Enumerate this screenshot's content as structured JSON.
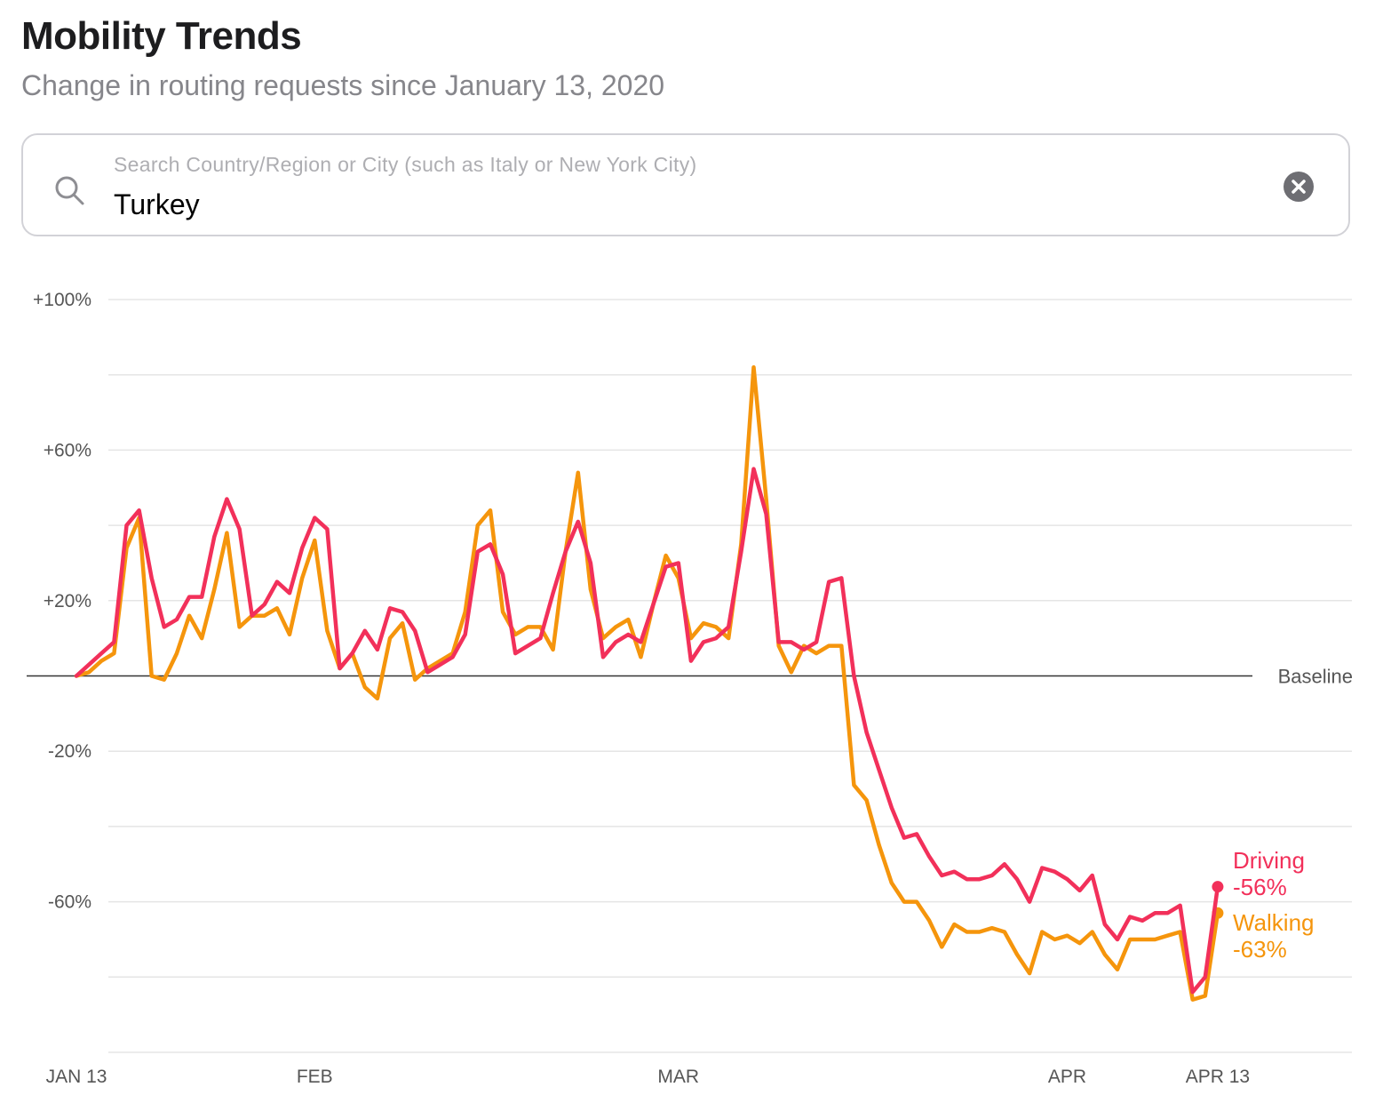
{
  "header": {
    "title": "Mobility Trends",
    "subtitle": "Change in routing requests since January 13, 2020"
  },
  "search": {
    "placeholder": "Search Country/Region or City (such as Italy or New York City)",
    "value": "Turkey",
    "icon": "search-icon",
    "clear_icon": "clear-icon"
  },
  "colors": {
    "driving": "#f2305a",
    "walking": "#f5950c",
    "grid": "#e5e5e5",
    "baseline": "#333333"
  },
  "chart_data": {
    "type": "line",
    "title": "",
    "xlabel": "",
    "ylabel": "",
    "x_start": "2020-01-13",
    "ylim": [
      -100,
      100
    ],
    "grid": true,
    "baseline_label": "Baseline",
    "yticks": [
      {
        "value": 100,
        "label": "+100%"
      },
      {
        "value": 60,
        "label": "+60%"
      },
      {
        "value": 20,
        "label": "+20%"
      },
      {
        "value": -20,
        "label": "-20%"
      },
      {
        "value": -60,
        "label": "-60%"
      }
    ],
    "xticks": [
      {
        "date": "2020-01-13",
        "label": "JAN 13"
      },
      {
        "date": "2020-02-01",
        "label": "FEB"
      },
      {
        "date": "2020-03-01",
        "label": "MAR"
      },
      {
        "date": "2020-04-01",
        "label": "APR"
      },
      {
        "date": "2020-04-13",
        "label": "APR 13"
      }
    ],
    "series": [
      {
        "name": "Driving",
        "value_label": "-56%",
        "color": "#f2305a",
        "values": [
          0,
          3,
          6,
          9,
          40,
          44,
          26,
          13,
          15,
          21,
          21,
          37,
          47,
          39,
          16,
          19,
          25,
          22,
          34,
          42,
          39,
          2,
          6,
          12,
          7,
          18,
          17,
          12,
          1,
          3,
          5,
          11,
          33,
          35,
          27,
          6,
          8,
          10,
          22,
          33,
          41,
          30,
          5,
          9,
          11,
          9,
          19,
          29,
          30,
          4,
          9,
          10,
          13,
          33,
          55,
          43,
          9,
          9,
          7,
          9,
          25,
          26,
          0,
          -15,
          -25,
          -35,
          -43,
          -42,
          -48,
          -53,
          -52,
          -54,
          -54,
          -53,
          -50,
          -54,
          -60,
          -51,
          -52,
          -54,
          -57,
          -53,
          -66,
          -70,
          -64,
          -65,
          -63,
          -63,
          -61,
          -84,
          -80,
          -56
        ]
      },
      {
        "name": "Walking",
        "value_label": "-63%",
        "color": "#f5950c",
        "values": [
          0,
          1,
          4,
          6,
          34,
          42,
          0,
          -1,
          6,
          16,
          10,
          23,
          38,
          13,
          16,
          16,
          18,
          11,
          26,
          36,
          12,
          2,
          6,
          -3,
          -6,
          10,
          14,
          -1,
          2,
          4,
          6,
          17,
          40,
          44,
          17,
          11,
          13,
          13,
          7,
          33,
          54,
          23,
          10,
          13,
          15,
          5,
          19,
          32,
          26,
          10,
          14,
          13,
          10,
          35,
          82,
          47,
          8,
          1,
          8,
          6,
          8,
          8,
          -29,
          -33,
          -45,
          -55,
          -60,
          -60,
          -65,
          -72,
          -66,
          -68,
          -68,
          -67,
          -68,
          -74,
          -79,
          -68,
          -70,
          -69,
          -71,
          -68,
          -74,
          -78,
          -70,
          -70,
          -70,
          -69,
          -68,
          -86,
          -85,
          -63
        ]
      }
    ]
  }
}
